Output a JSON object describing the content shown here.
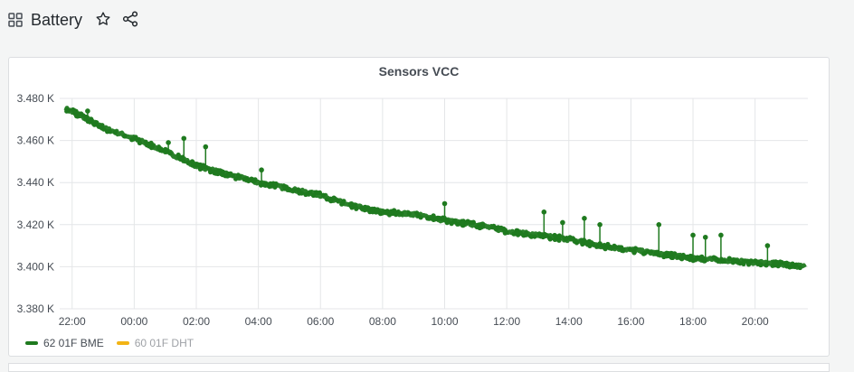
{
  "header": {
    "title": "Battery",
    "icons": [
      "dashboard-grid-icon",
      "star-icon",
      "share-icon"
    ]
  },
  "panel": {
    "title": "Sensors VCC"
  },
  "chart_data": {
    "type": "scatter",
    "title": "Sensors VCC",
    "xlabel": "",
    "ylabel": "",
    "x_tick_labels": [
      "22:00",
      "00:00",
      "02:00",
      "04:00",
      "06:00",
      "08:00",
      "10:00",
      "12:00",
      "14:00",
      "16:00",
      "18:00",
      "20:00"
    ],
    "x_tick_hours": [
      22,
      24,
      26,
      28,
      30,
      32,
      34,
      36,
      38,
      40,
      42,
      44
    ],
    "xlim_hours": [
      21.6,
      45.7
    ],
    "y_tick_labels": [
      "3.380 K",
      "3.400 K",
      "3.420 K",
      "3.440 K",
      "3.460 K",
      "3.480 K"
    ],
    "y_tick_values": [
      3380,
      3400,
      3420,
      3440,
      3460,
      3480
    ],
    "ylim": [
      3380,
      3480
    ],
    "grid": true,
    "legend_position": "bottom-left",
    "series": [
      {
        "name": "62 01F BME",
        "color": "#1f7a1f",
        "hidden": false,
        "trend_hours": [
          21.8,
          22.4,
          23.0,
          24.0,
          25.0,
          26.0,
          27.0,
          28.0,
          29.0,
          30.0,
          31.0,
          32.0,
          33.0,
          34.0,
          35.0,
          36.0,
          37.0,
          38.0,
          39.0,
          40.0,
          41.0,
          42.0,
          43.0,
          44.0,
          45.0,
          45.6
        ],
        "trend_values": [
          3475,
          3471,
          3466,
          3461,
          3455,
          3448,
          3444,
          3440,
          3437,
          3434,
          3429,
          3426,
          3425,
          3422,
          3420,
          3417,
          3415,
          3413,
          3410,
          3408,
          3406,
          3404,
          3403,
          3402,
          3401,
          3400
        ],
        "spikes": [
          {
            "hour": 22.5,
            "value": 3474
          },
          {
            "hour": 25.1,
            "value": 3459
          },
          {
            "hour": 25.6,
            "value": 3461
          },
          {
            "hour": 26.3,
            "value": 3457
          },
          {
            "hour": 28.1,
            "value": 3446
          },
          {
            "hour": 34.0,
            "value": 3430
          },
          {
            "hour": 37.2,
            "value": 3426
          },
          {
            "hour": 37.8,
            "value": 3421
          },
          {
            "hour": 38.5,
            "value": 3423
          },
          {
            "hour": 39.0,
            "value": 3420
          },
          {
            "hour": 40.9,
            "value": 3420
          },
          {
            "hour": 42.0,
            "value": 3415
          },
          {
            "hour": 42.4,
            "value": 3414
          },
          {
            "hour": 42.9,
            "value": 3415
          },
          {
            "hour": 44.4,
            "value": 3410
          }
        ]
      },
      {
        "name": "60 01F DHT",
        "color": "#f2b415",
        "hidden": true
      }
    ]
  }
}
